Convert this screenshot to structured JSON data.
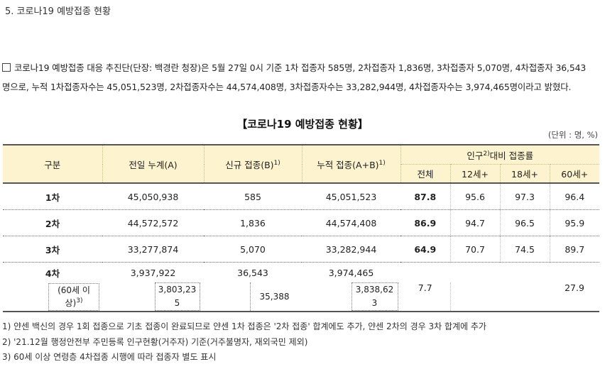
{
  "heading": "5. 코로나19 예방접종 현황",
  "paragraph": {
    "line1": "코로나19 예방접종 대응 추진단(단장: 백경란 청장)은 5월 27일 0시 기준 1차 접종자 585명, 2차접종자 1,836명, 3차접종자 5,070명, 4차접종자 36,543",
    "line2": "명으로, 누적 1차접종자수는 45,051,523명, 2차접종자수는 44,574,408명, 3차접종자수는 33,282,944명, 4차접종자수는 3,974,465명이라고 밝혔다."
  },
  "table_title": "【코로나19 예방접종 현황】",
  "unit": "(단위 : 명, %)",
  "headers": {
    "category": "구분",
    "prev_total": "전일 누계(A)",
    "new_vax": "신규 접종(B)",
    "new_vax_sup": "1)",
    "cumulative": "누적 접종(A+B)",
    "cumulative_sup": "1)",
    "rate_group_a": "인구",
    "rate_group_sup": "2)",
    "rate_group_b": "대비 접종률",
    "rate_total": "전체",
    "rate_12": "12세+",
    "rate_18": "18세+",
    "rate_60": "60세+"
  },
  "rows": [
    {
      "label": "1차",
      "prev": "45,050,938",
      "new": "585",
      "cum": "45,051,523",
      "total": "87.8",
      "r12": "95.6",
      "r18": "97.3",
      "r60": "96.4"
    },
    {
      "label": "2차",
      "prev": "44,572,572",
      "new": "1,836",
      "cum": "44,574,408",
      "total": "86.9",
      "r12": "94.7",
      "r18": "96.5",
      "r60": "95.9"
    },
    {
      "label": "3차",
      "prev": "33,277,874",
      "new": "5,070",
      "cum": "33,282,944",
      "total": "64.9",
      "r12": "70.7",
      "r18": "74.5",
      "r60": "89.7"
    },
    {
      "label": "4차",
      "prev": "3,937,922",
      "new": "36,543",
      "cum": "3,974,465"
    }
  ],
  "sub_row": {
    "label_a": "(60세 이",
    "label_b": "상)",
    "label_sup": "3)",
    "prev_a": "3,803,23",
    "prev_b": "5",
    "new": "35,388",
    "cum_a": "3,838,62",
    "cum_b": "3",
    "total": "7.7",
    "r60": "27.9"
  },
  "notes": [
    "1) 얀센 백신의 경우 1회 접종으로 기초 접종이 완료되므로 얀센 1차 접종은 '2차 접종' 합계에도 추가, 얀센 2차의 경우 3차 합계에 추가",
    "2) '21.12월 행정안전부 주민등록 인구현황(거주자) 기준(거주불명자, 재외국민 제외)",
    "3) 60세 이상 연령층 4차접종 시행에 따라 접종자 별도 표시"
  ]
}
